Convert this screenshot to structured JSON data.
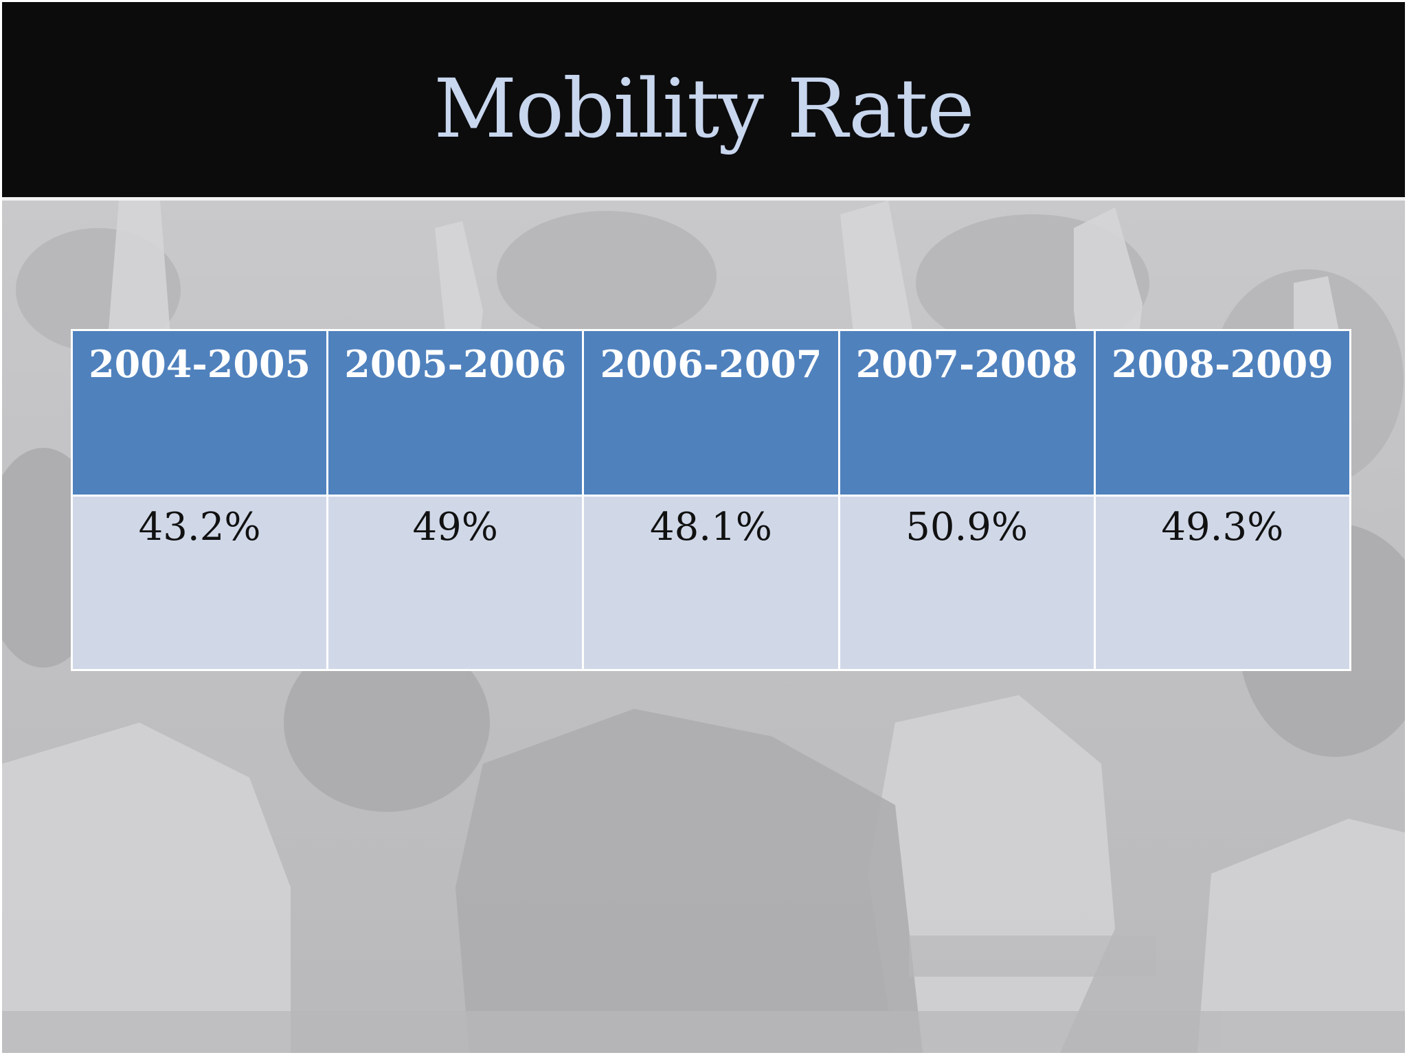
{
  "slide": {
    "title": "Mobility Rate"
  },
  "table": {
    "headers": [
      "2004-2005",
      "2005-2006",
      "2006-2007",
      "2007-2008",
      "2008-2009"
    ],
    "values": [
      "43.2%",
      "49%",
      "48.1%",
      "50.9%",
      "49.3%"
    ]
  },
  "background_image": {
    "description_icon": "classroom-hands-raised-photo-icon"
  },
  "colors": {
    "title_band": "#0c0c0d",
    "title_text": "#c8d6ee",
    "header_fill": "#4f81bd",
    "row_fill": "#d0d8e8"
  }
}
